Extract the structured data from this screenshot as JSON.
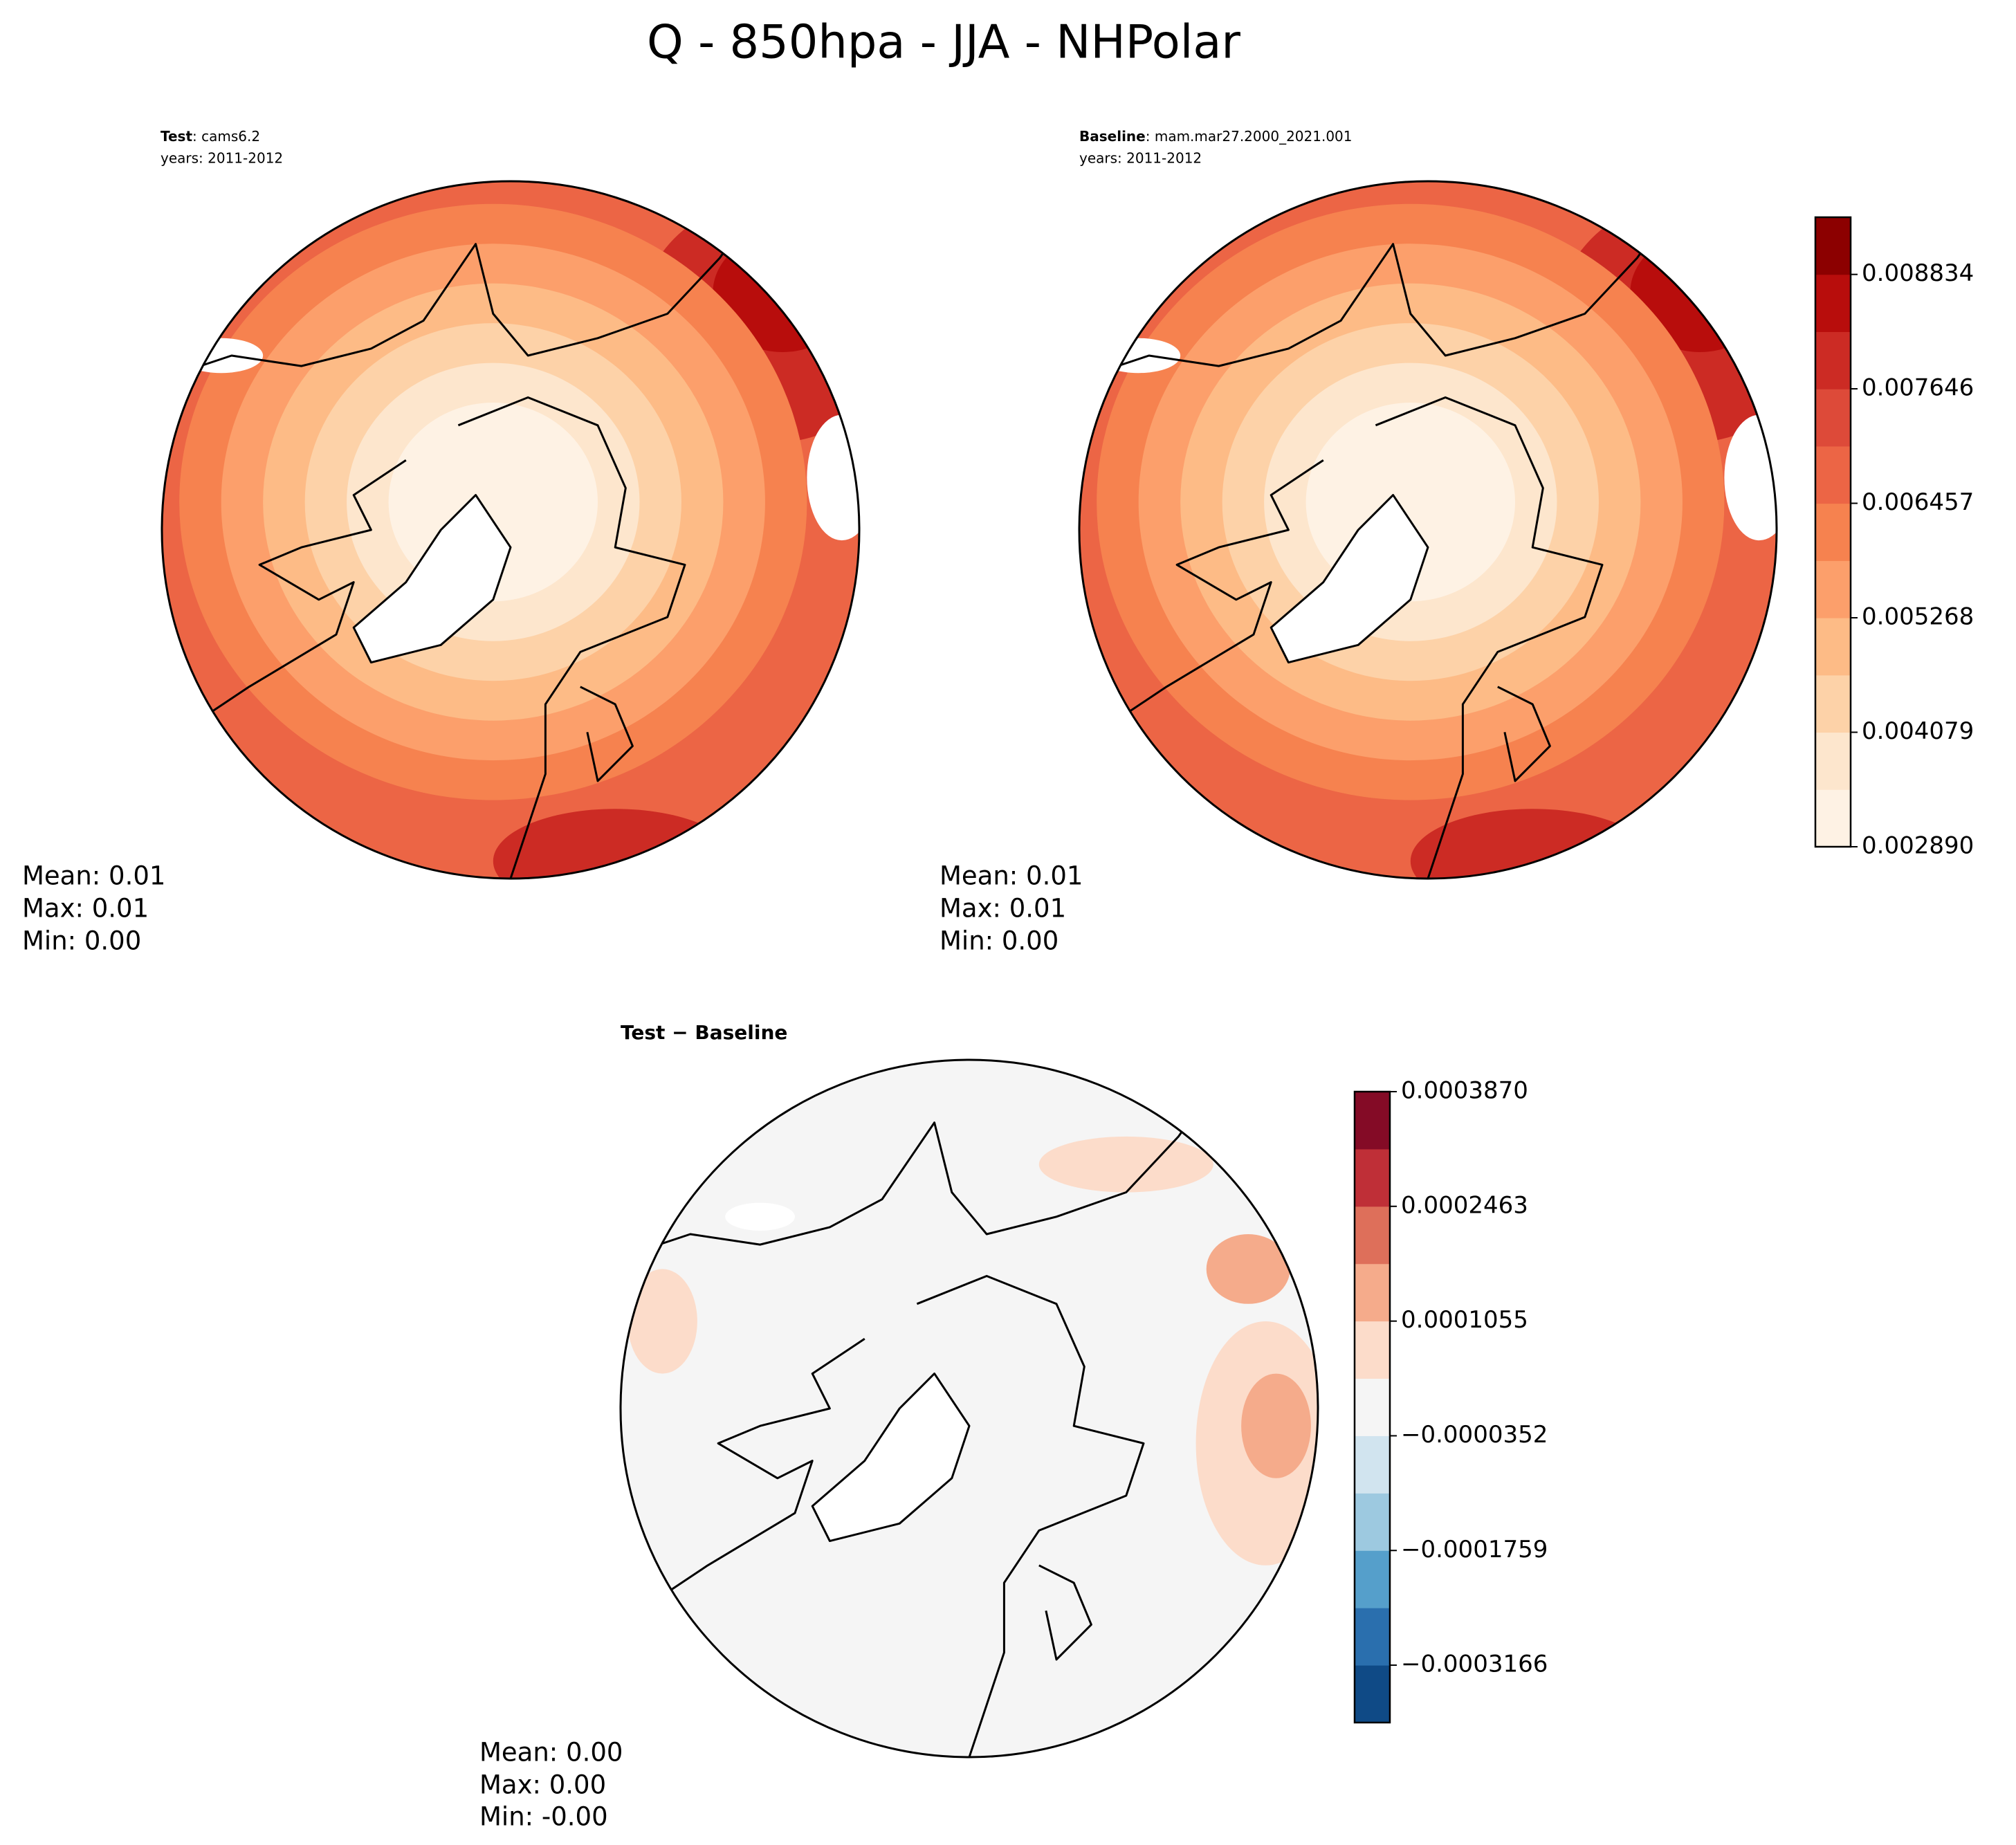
{
  "title": "Q - 850hpa - JJA - NHPolar",
  "panels": [
    {
      "label_bold": "Test",
      "label": ": cams6.2",
      "years": "years: 2011-2012",
      "stats": [
        "Mean:  0.01",
        "Max:  0.01",
        "Min:  0.00"
      ]
    },
    {
      "label_bold": "Baseline",
      "label": ": mam.mar27.2000_2021.001",
      "years": "years: 2011-2012",
      "stats": [
        "Mean:  0.01",
        "Max:  0.01",
        "Min:  0.00"
      ]
    },
    {
      "label_bold": "Test − Baseline",
      "stats": [
        "Mean:  0.00",
        "Max:  0.00",
        "Min: -0.00"
      ]
    }
  ],
  "colorbars": [
    {
      "ylim": [
        0.00289,
        0.009428
      ],
      "yticks": [
        {
          "value": 0.00289,
          "label": "0.002890"
        },
        0.004079,
        0.005268,
        0.006457,
        0.007646,
        0.008834
      ],
      "colors": [
        "#fef2e4",
        "#fde6cd",
        "#fdd2a8",
        "#fdbb86",
        "#fc9f6b",
        "#f6824f",
        "#ec6545",
        "#dd4a39",
        "#cc2b24",
        "#b80d0c",
        "#8c0000"
      ]
    },
    {
      "ylim": [
        -0.000387,
        0.000387
      ],
      "yticks": [
        {
          "value": -0.0003166,
          "label": "−0.0003166"
        },
        {
          "value": -0.0001759,
          "label": "−0.0001759"
        },
        {
          "value": -3.52e-05,
          "label": "−0.0000352"
        },
        0.0001055,
        0.0002463,
        {
          "value": 0.000387,
          "label": "0.0003870"
        }
      ],
      "colors": [
        "#0f4a86",
        "#2a6fae",
        "#559fcb",
        "#9dc9e0",
        "#d1e4ef",
        "#f5f5f5",
        "#fcdcca",
        "#f5ab8b",
        "#de6f5a",
        "#bf2f37",
        "#840b26"
      ]
    }
  ]
}
